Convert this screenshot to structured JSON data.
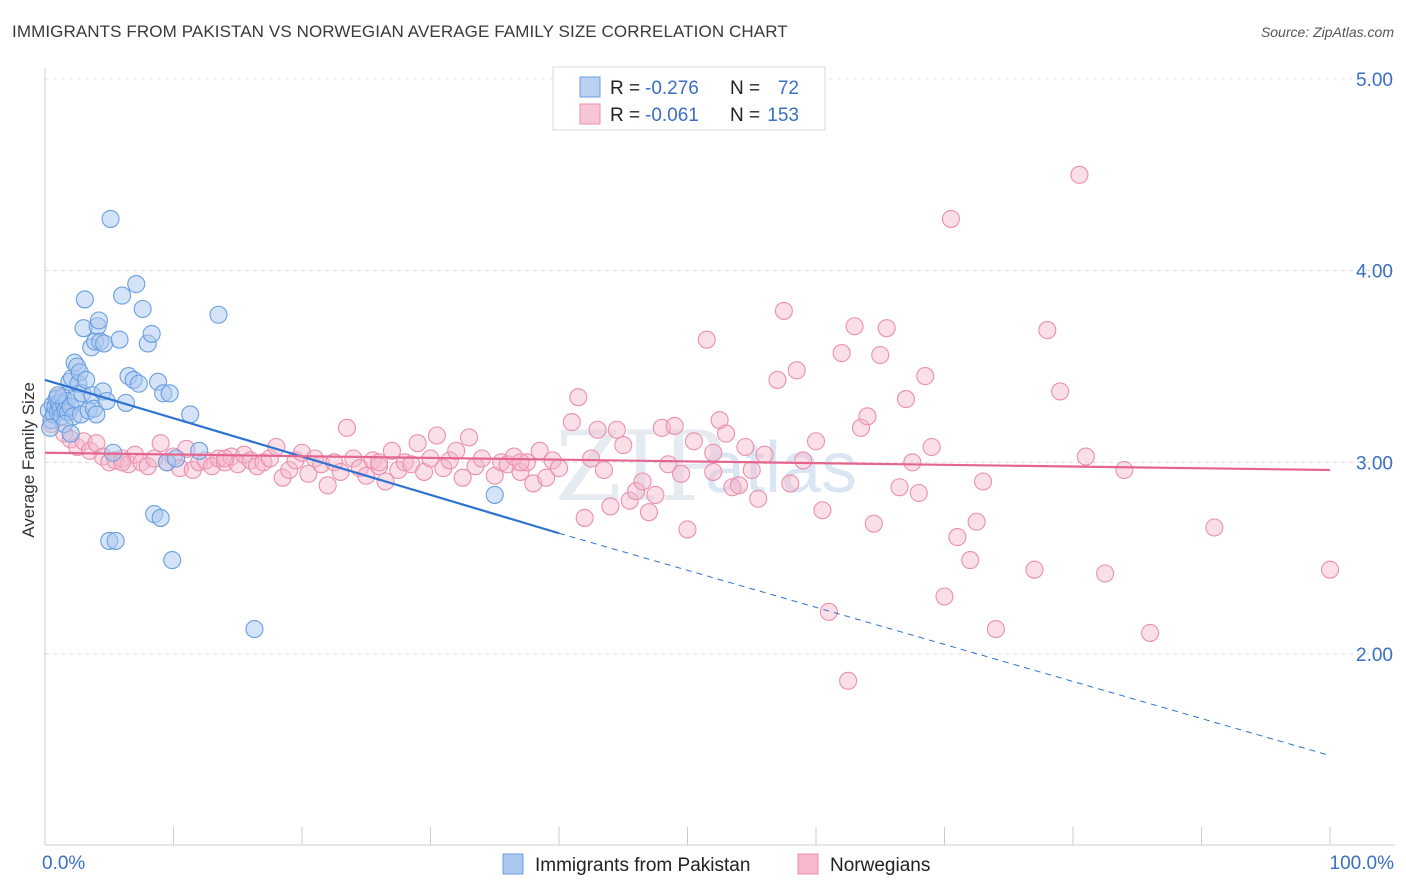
{
  "header": {
    "title": "IMMIGRANTS FROM PAKISTAN VS NORWEGIAN AVERAGE FAMILY SIZE CORRELATION CHART",
    "source": "Source: ZipAtlas.com"
  },
  "watermark": {
    "zip": "ZIP",
    "atlas": "atlas"
  },
  "legend": {
    "rows": [
      {
        "r_label": "R =",
        "r_value": "-0.276",
        "n_label": "N =",
        "n_value": "72",
        "color": "#a9c7ef"
      },
      {
        "r_label": "R =",
        "r_value": "-0.061",
        "n_label": "N =",
        "n_value": "153",
        "color": "#f5b8cc"
      }
    ]
  },
  "chart_data": {
    "type": "scatter",
    "title": "IMMIGRANTS FROM PAKISTAN VS NORWEGIAN AVERAGE FAMILY SIZE CORRELATION CHART",
    "xlabel": "",
    "ylabel": "Average Family Size",
    "xlim": [
      0,
      100
    ],
    "ylim": [
      1.0,
      5.15
    ],
    "x_tick_labels": [
      "0.0%",
      "100.0%"
    ],
    "y_ticks": [
      2.0,
      3.0,
      4.0,
      5.0
    ],
    "y_tick_labels": [
      "2.00",
      "3.00",
      "4.00",
      "5.00"
    ],
    "grid": true,
    "legend_position": "top-center",
    "series": [
      {
        "name": "Immigrants from Pakistan",
        "color": "#6a9fe0",
        "fill": "#a9c7ef",
        "line_color": "#2f72d0",
        "trend": {
          "x0": 0,
          "y0": 3.43,
          "x1": 40,
          "y1": 2.63,
          "dash_to_x": 100,
          "dash_to_y": 1.47
        },
        "points": [
          [
            0.3,
            3.27
          ],
          [
            0.5,
            3.22
          ],
          [
            0.6,
            3.3
          ],
          [
            0.7,
            3.25
          ],
          [
            0.8,
            3.29
          ],
          [
            0.9,
            3.33
          ],
          [
            1.0,
            3.26
          ],
          [
            1.1,
            3.31
          ],
          [
            1.2,
            3.28
          ],
          [
            1.3,
            3.24
          ],
          [
            1.4,
            3.34
          ],
          [
            1.5,
            3.3
          ],
          [
            1.6,
            3.27
          ],
          [
            1.7,
            3.32
          ],
          [
            1.8,
            3.26
          ],
          [
            1.9,
            3.42
          ],
          [
            2.0,
            3.29
          ],
          [
            2.1,
            3.44
          ],
          [
            2.2,
            3.24
          ],
          [
            2.3,
            3.52
          ],
          [
            2.4,
            3.33
          ],
          [
            2.5,
            3.5
          ],
          [
            2.6,
            3.41
          ],
          [
            2.7,
            3.47
          ],
          [
            2.8,
            3.25
          ],
          [
            2.9,
            3.36
          ],
          [
            3.0,
            3.7
          ],
          [
            3.1,
            3.85
          ],
          [
            3.2,
            3.43
          ],
          [
            3.4,
            3.27
          ],
          [
            3.6,
            3.6
          ],
          [
            3.7,
            3.35
          ],
          [
            3.8,
            3.28
          ],
          [
            3.9,
            3.63
          ],
          [
            4.0,
            3.25
          ],
          [
            4.1,
            3.71
          ],
          [
            4.2,
            3.74
          ],
          [
            4.3,
            3.63
          ],
          [
            4.5,
            3.37
          ],
          [
            4.6,
            3.62
          ],
          [
            4.8,
            3.32
          ],
          [
            5.0,
            2.59
          ],
          [
            5.1,
            4.27
          ],
          [
            5.3,
            3.05
          ],
          [
            5.5,
            2.59
          ],
          [
            5.8,
            3.64
          ],
          [
            6.0,
            3.87
          ],
          [
            6.3,
            3.31
          ],
          [
            6.5,
            3.45
          ],
          [
            6.9,
            3.43
          ],
          [
            7.1,
            3.93
          ],
          [
            7.3,
            3.41
          ],
          [
            7.6,
            3.8
          ],
          [
            8.0,
            3.62
          ],
          [
            8.3,
            3.67
          ],
          [
            8.5,
            2.73
          ],
          [
            8.8,
            3.42
          ],
          [
            9.0,
            2.71
          ],
          [
            9.2,
            3.36
          ],
          [
            9.5,
            3.0
          ],
          [
            9.7,
            3.36
          ],
          [
            9.9,
            2.49
          ],
          [
            10.2,
            3.02
          ],
          [
            11.3,
            3.25
          ],
          [
            12.0,
            3.06
          ],
          [
            13.5,
            3.77
          ],
          [
            16.3,
            2.13
          ],
          [
            35.0,
            2.83
          ],
          [
            1.5,
            3.2
          ],
          [
            2.0,
            3.15
          ],
          [
            0.4,
            3.18
          ],
          [
            1.0,
            3.35
          ]
        ]
      },
      {
        "name": "Norwegians",
        "color": "#ec8fae",
        "fill": "#f5b8cc",
        "line_color": "#e4668e",
        "trend": {
          "x0": 0,
          "y0": 3.05,
          "x1": 100,
          "y1": 2.96
        },
        "points": [
          [
            0.5,
            3.2
          ],
          [
            1.0,
            3.34
          ],
          [
            1.5,
            3.15
          ],
          [
            2.0,
            3.12
          ],
          [
            2.5,
            3.08
          ],
          [
            3.0,
            3.11
          ],
          [
            3.5,
            3.06
          ],
          [
            4.0,
            3.1
          ],
          [
            4.5,
            3.03
          ],
          [
            5.0,
            3.0
          ],
          [
            5.5,
            3.01
          ],
          [
            6.0,
            3.02
          ],
          [
            6.5,
            2.99
          ],
          [
            7.0,
            3.04
          ],
          [
            7.5,
            3.0
          ],
          [
            8.0,
            2.98
          ],
          [
            8.5,
            3.02
          ],
          [
            9.0,
            3.1
          ],
          [
            9.5,
            3.0
          ],
          [
            10.0,
            3.03
          ],
          [
            10.5,
            2.97
          ],
          [
            11.0,
            3.07
          ],
          [
            11.5,
            2.96
          ],
          [
            12.0,
            3.0
          ],
          [
            12.5,
            3.01
          ],
          [
            13.0,
            2.98
          ],
          [
            13.5,
            3.02
          ],
          [
            14.0,
            3.0
          ],
          [
            14.5,
            3.03
          ],
          [
            15.0,
            2.99
          ],
          [
            15.5,
            3.04
          ],
          [
            16.0,
            3.01
          ],
          [
            16.5,
            2.98
          ],
          [
            17.0,
            3.0
          ],
          [
            17.5,
            3.02
          ],
          [
            18.0,
            3.08
          ],
          [
            18.5,
            2.92
          ],
          [
            19.0,
            2.96
          ],
          [
            19.5,
            3.01
          ],
          [
            20.0,
            3.05
          ],
          [
            20.5,
            2.94
          ],
          [
            21.0,
            3.02
          ],
          [
            21.5,
            2.99
          ],
          [
            22.0,
            2.88
          ],
          [
            22.5,
            3.0
          ],
          [
            23.0,
            2.95
          ],
          [
            23.5,
            3.18
          ],
          [
            24.0,
            3.02
          ],
          [
            24.5,
            2.97
          ],
          [
            25.0,
            2.93
          ],
          [
            25.5,
            3.01
          ],
          [
            26.0,
            2.98
          ],
          [
            26.5,
            2.9
          ],
          [
            27.0,
            3.06
          ],
          [
            27.5,
            2.96
          ],
          [
            28.0,
            3.0
          ],
          [
            28.5,
            2.99
          ],
          [
            29.0,
            3.1
          ],
          [
            29.5,
            2.95
          ],
          [
            30.0,
            3.02
          ],
          [
            30.5,
            3.14
          ],
          [
            31.0,
            2.97
          ],
          [
            31.5,
            3.01
          ],
          [
            32.0,
            3.06
          ],
          [
            32.5,
            2.92
          ],
          [
            33.0,
            3.13
          ],
          [
            33.5,
            2.98
          ],
          [
            34.0,
            3.02
          ],
          [
            35.0,
            2.93
          ],
          [
            35.5,
            3.0
          ],
          [
            36.0,
            2.99
          ],
          [
            36.5,
            3.03
          ],
          [
            37.0,
            2.95
          ],
          [
            37.5,
            3.0
          ],
          [
            38.0,
            2.89
          ],
          [
            38.5,
            3.06
          ],
          [
            39.0,
            2.92
          ],
          [
            39.5,
            3.01
          ],
          [
            40.0,
            2.97
          ],
          [
            41.0,
            3.21
          ],
          [
            41.5,
            3.34
          ],
          [
            42.0,
            2.71
          ],
          [
            42.5,
            3.02
          ],
          [
            43.0,
            3.17
          ],
          [
            43.5,
            2.96
          ],
          [
            44.0,
            2.77
          ],
          [
            44.5,
            3.17
          ],
          [
            45.0,
            3.09
          ],
          [
            45.5,
            2.8
          ],
          [
            46.0,
            2.85
          ],
          [
            46.5,
            2.9
          ],
          [
            47.0,
            2.74
          ],
          [
            47.5,
            2.83
          ],
          [
            48.0,
            3.18
          ],
          [
            48.5,
            2.99
          ],
          [
            49.0,
            3.19
          ],
          [
            49.5,
            2.94
          ],
          [
            50.0,
            2.65
          ],
          [
            50.5,
            3.11
          ],
          [
            51.5,
            3.64
          ],
          [
            52.0,
            2.95
          ],
          [
            52.5,
            3.22
          ],
          [
            53.0,
            3.15
          ],
          [
            53.5,
            2.87
          ],
          [
            54.0,
            2.88
          ],
          [
            54.5,
            3.08
          ],
          [
            55.0,
            2.96
          ],
          [
            55.5,
            2.81
          ],
          [
            56.0,
            3.04
          ],
          [
            57.0,
            3.43
          ],
          [
            57.5,
            3.79
          ],
          [
            58.0,
            2.89
          ],
          [
            58.5,
            3.48
          ],
          [
            59.0,
            3.01
          ],
          [
            60.0,
            3.11
          ],
          [
            60.5,
            2.75
          ],
          [
            61.0,
            2.22
          ],
          [
            62.0,
            3.57
          ],
          [
            62.5,
            1.86
          ],
          [
            63.0,
            3.71
          ],
          [
            63.5,
            3.18
          ],
          [
            64.0,
            3.24
          ],
          [
            64.5,
            2.68
          ],
          [
            65.0,
            3.56
          ],
          [
            65.5,
            3.7
          ],
          [
            66.5,
            2.87
          ],
          [
            67.0,
            3.33
          ],
          [
            67.5,
            3.0
          ],
          [
            68.0,
            2.84
          ],
          [
            68.5,
            3.45
          ],
          [
            69.0,
            3.08
          ],
          [
            70.5,
            4.27
          ],
          [
            70.0,
            2.3
          ],
          [
            71.0,
            2.61
          ],
          [
            72.0,
            2.49
          ],
          [
            72.5,
            2.69
          ],
          [
            73.0,
            2.9
          ],
          [
            74.0,
            2.13
          ],
          [
            77.0,
            2.44
          ],
          [
            78.0,
            3.69
          ],
          [
            79.0,
            3.37
          ],
          [
            80.5,
            4.5
          ],
          [
            81.0,
            3.03
          ],
          [
            82.5,
            2.42
          ],
          [
            84.0,
            2.96
          ],
          [
            86.0,
            2.11
          ],
          [
            91.0,
            2.66
          ],
          [
            100.0,
            2.44
          ],
          [
            52.0,
            3.05
          ],
          [
            37.0,
            3.0
          ],
          [
            26.0,
            3.0
          ],
          [
            14.0,
            3.02
          ],
          [
            6.0,
            3.0
          ]
        ]
      }
    ]
  },
  "bottom_legend": {
    "items": [
      {
        "label": "Immigrants from Pakistan",
        "color": "#a9c7ef",
        "stroke": "#6a9fe0"
      },
      {
        "label": "Norwegians",
        "color": "#f5b8cc",
        "stroke": "#ec8fae"
      }
    ]
  }
}
